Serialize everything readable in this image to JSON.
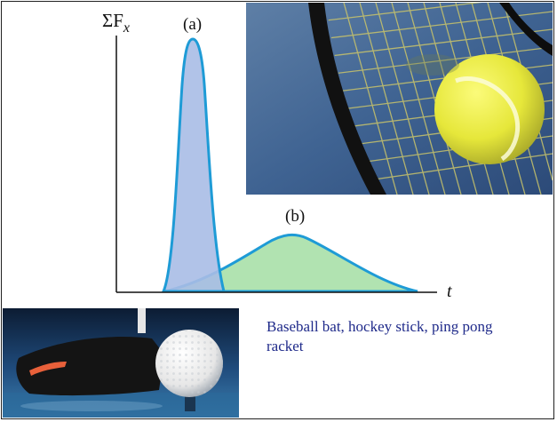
{
  "graph": {
    "y_axis_label": "ΣF",
    "y_axis_subscript": "x",
    "x_axis_label": "t",
    "curve_a_label": "(a)",
    "curve_b_label": "(b)",
    "curve_stroke_color": "#1e9bd6",
    "curve_a_fill": "#a9bde6",
    "curve_b_fill": "#a9e0a8"
  },
  "caption": {
    "text": "Baseball bat, hockey stick, ping pong racket",
    "color": "#1f2a8a"
  },
  "photos": {
    "tennis_racket": {
      "ball_color": "#e8e93a",
      "string_color": "#c9c46a"
    },
    "golf_club": {
      "ball_color": "#f2f2f2",
      "club_accent": "#e8603a"
    }
  }
}
